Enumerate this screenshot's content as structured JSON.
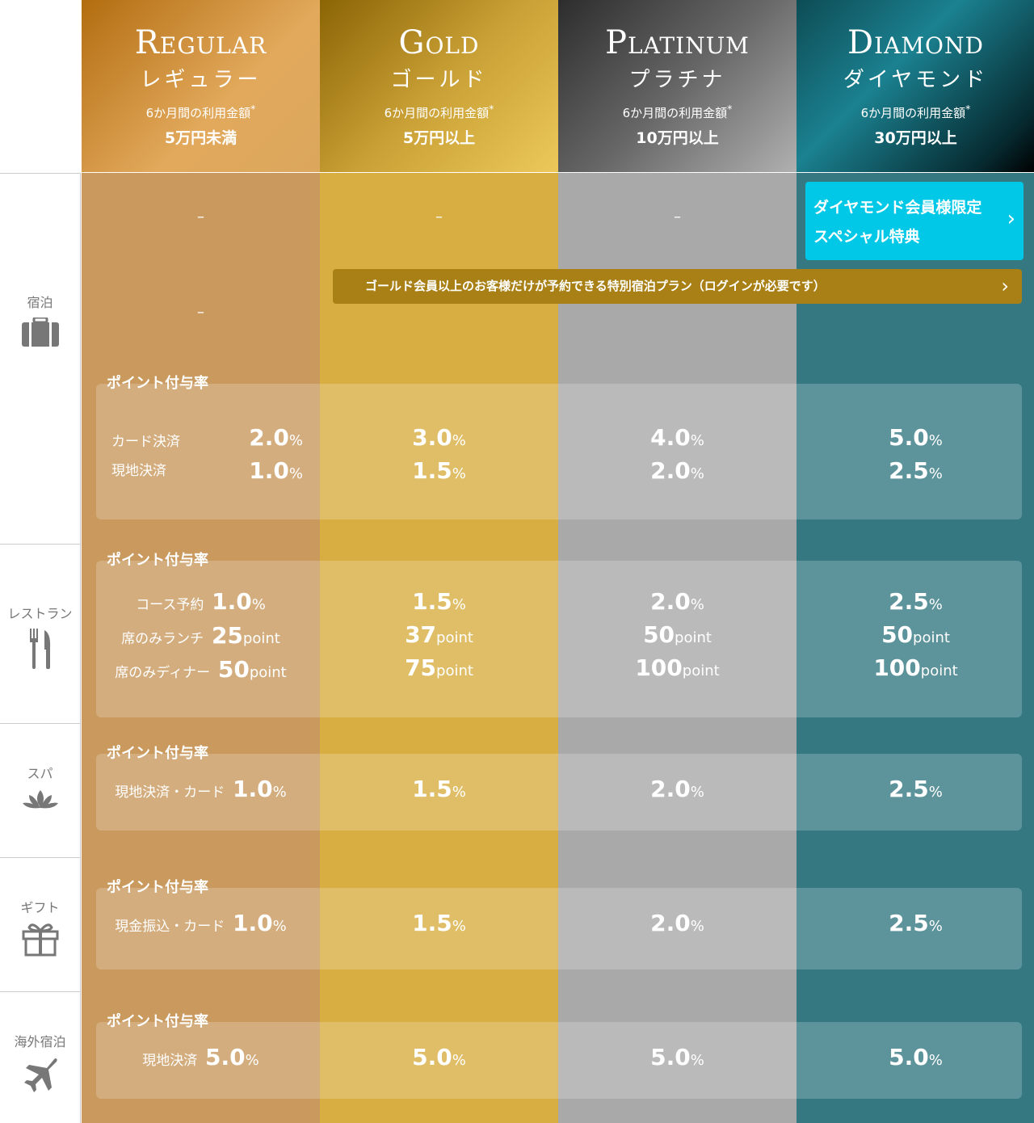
{
  "tiers": [
    {
      "en": "Regular",
      "jp": "レギュラー",
      "period": "6か月間の利用金額",
      "asterisk": "*",
      "amount": "5万円未満",
      "color": "#c9995e"
    },
    {
      "en": "Gold",
      "jp": "ゴールド",
      "period": "6か月間の利用金額",
      "asterisk": "*",
      "amount": "5万円以上",
      "color": "#d8ae42"
    },
    {
      "en": "Platinum",
      "jp": "プラチナ",
      "period": "6か月間の利用金額",
      "asterisk": "*",
      "amount": "10万円以上",
      "color": "#a9a9a9"
    },
    {
      "en": "Diamond",
      "jp": "ダイヤモンド",
      "period": "6か月間の利用金額",
      "asterisk": "*",
      "amount": "30万円以上",
      "color": "#357882"
    }
  ],
  "categories": [
    {
      "label": "宿泊",
      "icon": "suitcase-icon"
    },
    {
      "label": "レストラン",
      "icon": "fork-knife-icon"
    },
    {
      "label": "スパ",
      "icon": "lotus-icon"
    },
    {
      "label": "ギフト",
      "icon": "gift-icon"
    },
    {
      "label": "海外宿泊",
      "icon": "airplane-icon"
    }
  ],
  "hotel": {
    "dash": "–",
    "diamond_button": {
      "line1": "ダイヤモンド会員様限定",
      "line2": "スペシャル特典",
      "chevron": "›"
    },
    "gold_plan_button": {
      "label": "ゴールド会員以上のお客様だけが予約できる特別宿泊プラン（ログインが必要です）",
      "chevron": "›"
    },
    "points_title": "ポイント付与率",
    "labels": [
      "カード決済",
      "現地決済"
    ],
    "values": [
      [
        "2.0",
        "1.0"
      ],
      [
        "3.0",
        "1.5"
      ],
      [
        "4.0",
        "2.0"
      ],
      [
        "5.0",
        "2.5"
      ]
    ],
    "unit": "%"
  },
  "restaurant": {
    "points_title": "ポイント付与率",
    "labels": [
      "コース予約",
      "席のみランチ",
      "席のみディナー"
    ],
    "units": [
      "%",
      "point",
      "point"
    ],
    "values": [
      [
        "1.0",
        "25",
        "50"
      ],
      [
        "1.5",
        "37",
        "75"
      ],
      [
        "2.0",
        "50",
        "100"
      ],
      [
        "2.5",
        "50",
        "100"
      ]
    ]
  },
  "spa": {
    "points_title": "ポイント付与率",
    "label": "現地決済・カード",
    "unit": "%",
    "values": [
      "1.0",
      "1.5",
      "2.0",
      "2.5"
    ]
  },
  "gift": {
    "points_title": "ポイント付与率",
    "label": "現金振込・カード",
    "unit": "%",
    "values": [
      "1.0",
      "1.5",
      "2.0",
      "2.5"
    ]
  },
  "overseas": {
    "points_title": "ポイント付与率",
    "label": "現地決済",
    "unit": "%",
    "values": [
      "5.0",
      "5.0",
      "5.0",
      "5.0"
    ]
  }
}
